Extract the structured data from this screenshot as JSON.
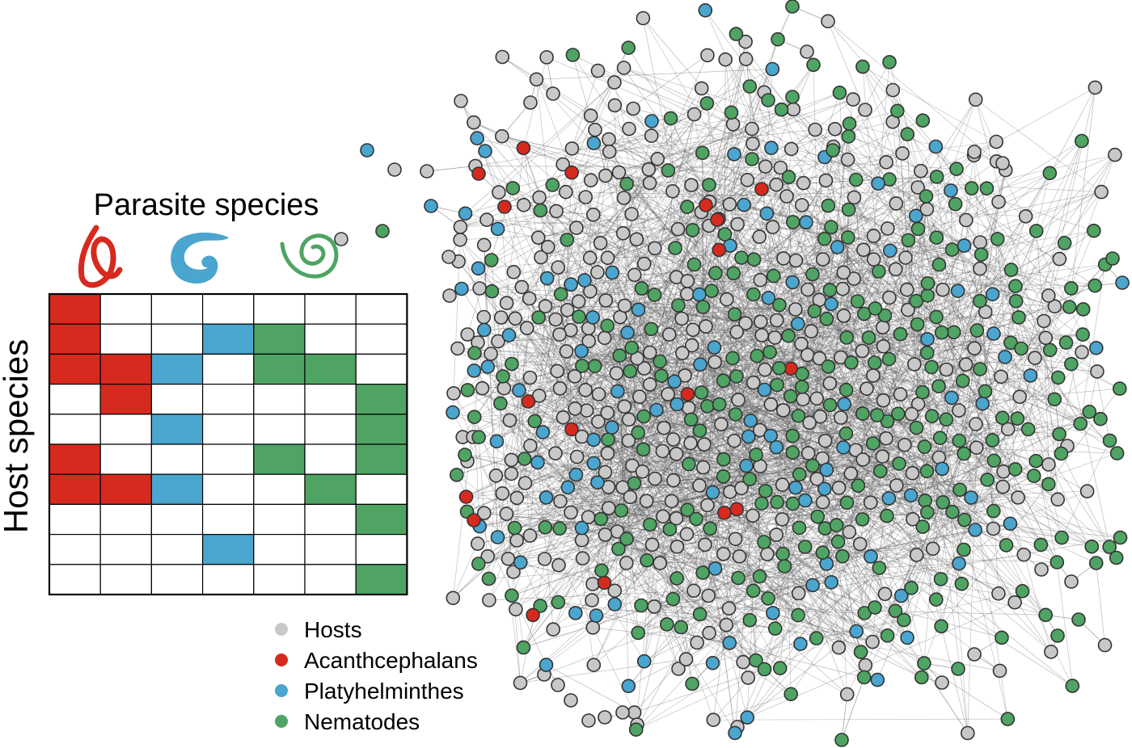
{
  "matrix": {
    "title": "Parasite species",
    "row_label": "Host species",
    "columns": 7,
    "rows": 10,
    "cells": [
      [
        1,
        0,
        0,
        0,
        0,
        0,
        0
      ],
      [
        1,
        0,
        0,
        2,
        3,
        0,
        0
      ],
      [
        1,
        1,
        2,
        0,
        3,
        3,
        0
      ],
      [
        0,
        1,
        0,
        0,
        0,
        0,
        3
      ],
      [
        0,
        0,
        2,
        0,
        0,
        0,
        3
      ],
      [
        1,
        0,
        0,
        0,
        3,
        0,
        3
      ],
      [
        1,
        1,
        2,
        0,
        0,
        3,
        0
      ],
      [
        0,
        0,
        0,
        0,
        0,
        0,
        3
      ],
      [
        0,
        0,
        0,
        2,
        0,
        0,
        0
      ],
      [
        0,
        0,
        0,
        0,
        0,
        0,
        3
      ]
    ],
    "parasite_icons": [
      "acanthocephalan-worm-icon",
      "platyhelminth-worm-icon",
      "nematode-worm-icon"
    ]
  },
  "legend": {
    "items": [
      {
        "label": "Hosts",
        "color": "#c8c8c8"
      },
      {
        "label": "Acanthcephalans",
        "color": "#d62a1f"
      },
      {
        "label": "Platyhelminthes",
        "color": "#4aa5cf"
      },
      {
        "label": "Nematodes",
        "color": "#4fa463"
      }
    ]
  },
  "colors": {
    "host": "#c8c8c8",
    "acanthocephalan": "#d62a1f",
    "platyhelminth": "#4aa5cf",
    "nematode": "#4fa463",
    "edge": "#555555",
    "node_stroke": "#333333"
  }
}
